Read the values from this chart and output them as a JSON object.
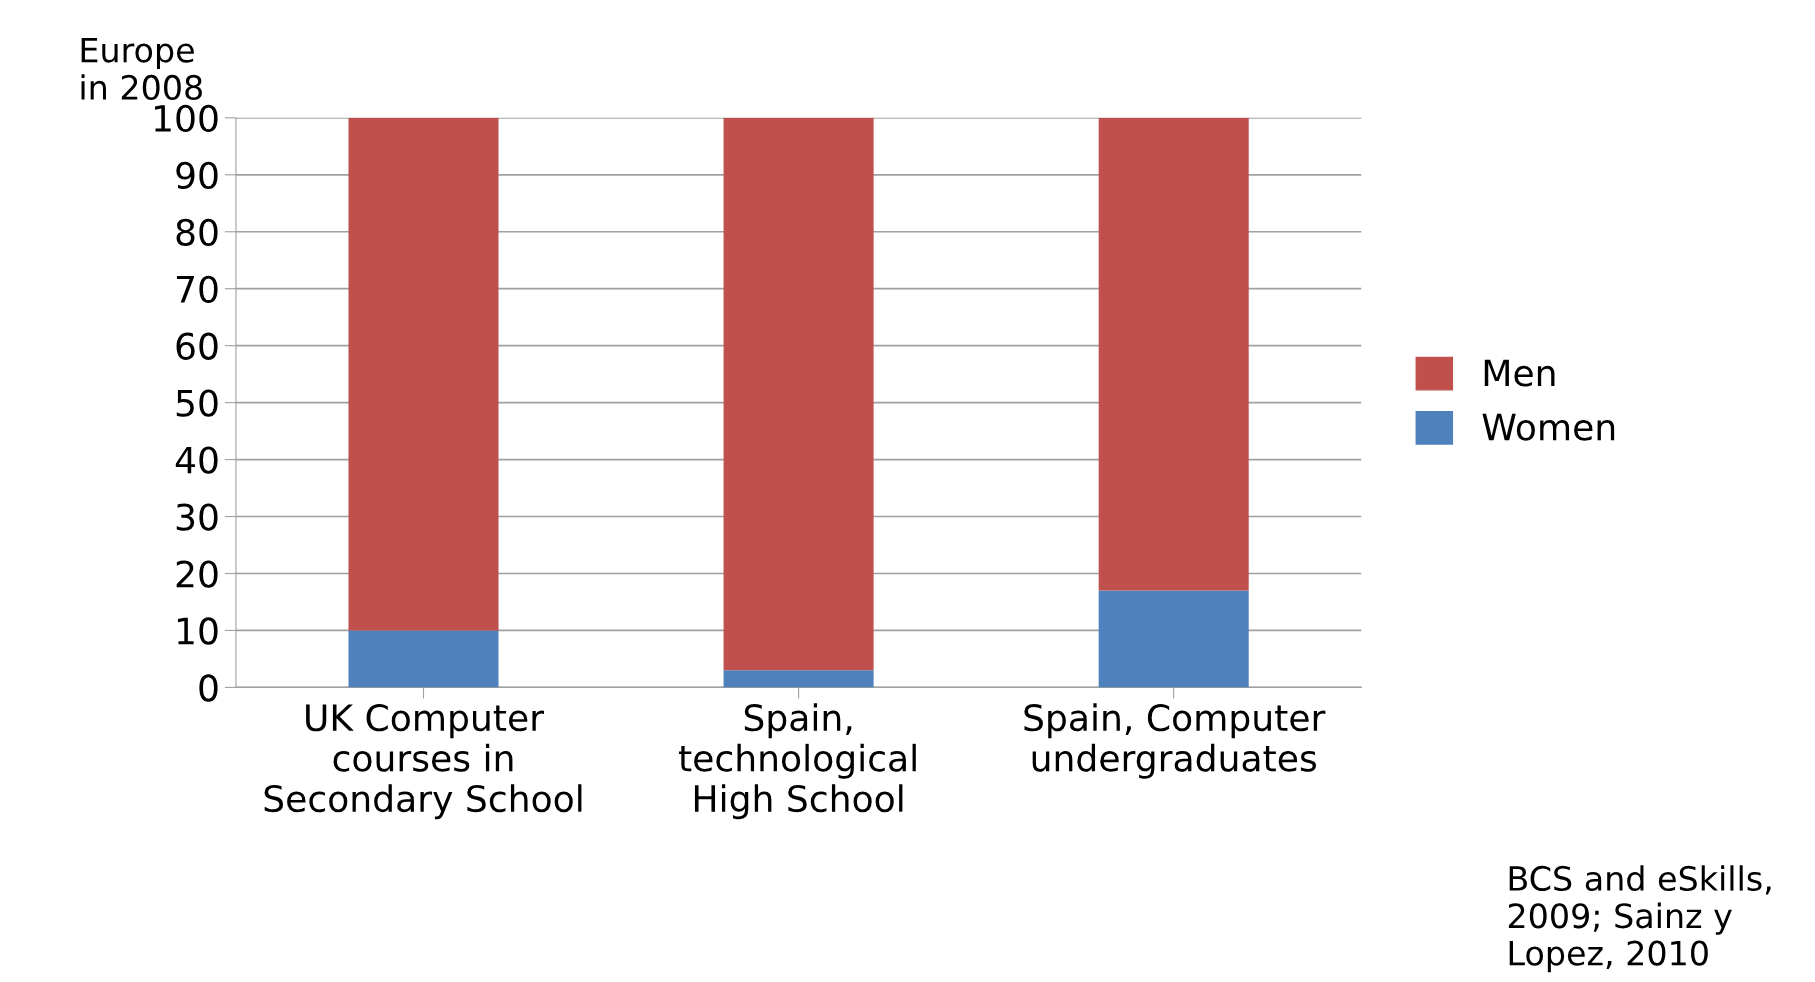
{
  "chart_data": {
    "type": "bar",
    "stacked": true,
    "ylabel": "Europe\nin 2008",
    "categories": [
      "UK Computer\ncourses in\nSecondary School",
      "Spain,\ntechnological\nHigh School",
      "Spain, Computer\nundergraduates"
    ],
    "series": [
      {
        "name": "Women",
        "color": "#4f81bd",
        "values": [
          10,
          3,
          17
        ]
      },
      {
        "name": "Men",
        "color": "#c0504d",
        "values": [
          90,
          97,
          83
        ]
      }
    ],
    "ylim": [
      0,
      100
    ],
    "yticks": [
      0,
      10,
      20,
      30,
      40,
      50,
      60,
      70,
      80,
      90,
      100
    ],
    "grid": "y",
    "legend": "right",
    "annotations": [
      "BCS and eSkills,\n2009; Sainz y\nLopez, 2010"
    ]
  }
}
